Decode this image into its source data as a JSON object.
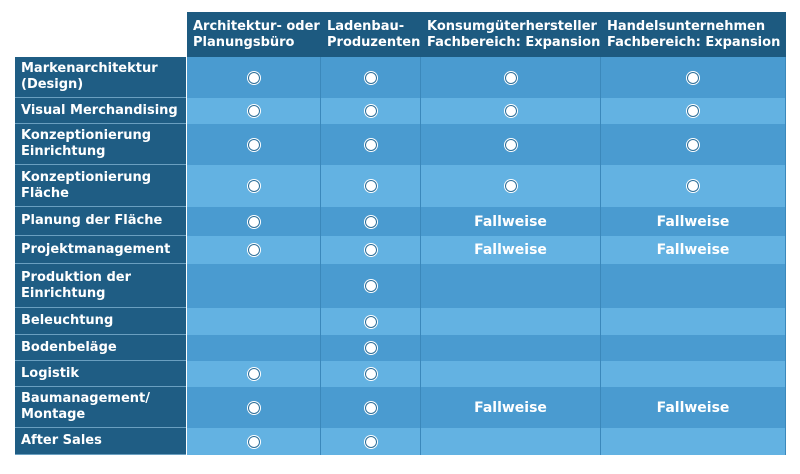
{
  "table": {
    "columns": [
      "Architektur- oder Planungsbüro",
      "Ladenbau-Produzenten",
      "Konsumgüterhersteller Fachbereich: Expansion",
      "Handelsunternehmen Fachbereich: Expansion"
    ],
    "rows": [
      {
        "label": "Markenarchitektur (Design)",
        "cells": [
          true,
          true,
          true,
          true
        ]
      },
      {
        "label": "Visual Merchandising",
        "cells": [
          true,
          true,
          true,
          true
        ]
      },
      {
        "label": "Konzeptionierung Einrichtung",
        "cells": [
          true,
          true,
          true,
          true
        ]
      },
      {
        "label": "Konzeptionierung Fläche",
        "cells": [
          true,
          true,
          true,
          true
        ]
      },
      {
        "label": "Planung der Fläche",
        "cells": [
          true,
          true,
          "Fallweise",
          "Fallweise"
        ]
      },
      {
        "label": "Projektmanagement",
        "cells": [
          true,
          true,
          "Fallweise",
          "Fallweise"
        ]
      },
      {
        "label": "Produktion der Einrichtung",
        "cells": [
          null,
          true,
          null,
          null
        ]
      },
      {
        "label": "Beleuchtung",
        "cells": [
          null,
          true,
          null,
          null
        ]
      },
      {
        "label": "Bodenbeläge",
        "cells": [
          null,
          true,
          null,
          null
        ]
      },
      {
        "label": "Logistik",
        "cells": [
          true,
          true,
          null,
          null
        ]
      },
      {
        "label": "Baumanagement/ Montage",
        "cells": [
          true,
          true,
          "Fallweise",
          "Fallweise"
        ]
      },
      {
        "label": "After Sales",
        "cells": [
          true,
          true,
          null,
          null
        ]
      }
    ]
  }
}
